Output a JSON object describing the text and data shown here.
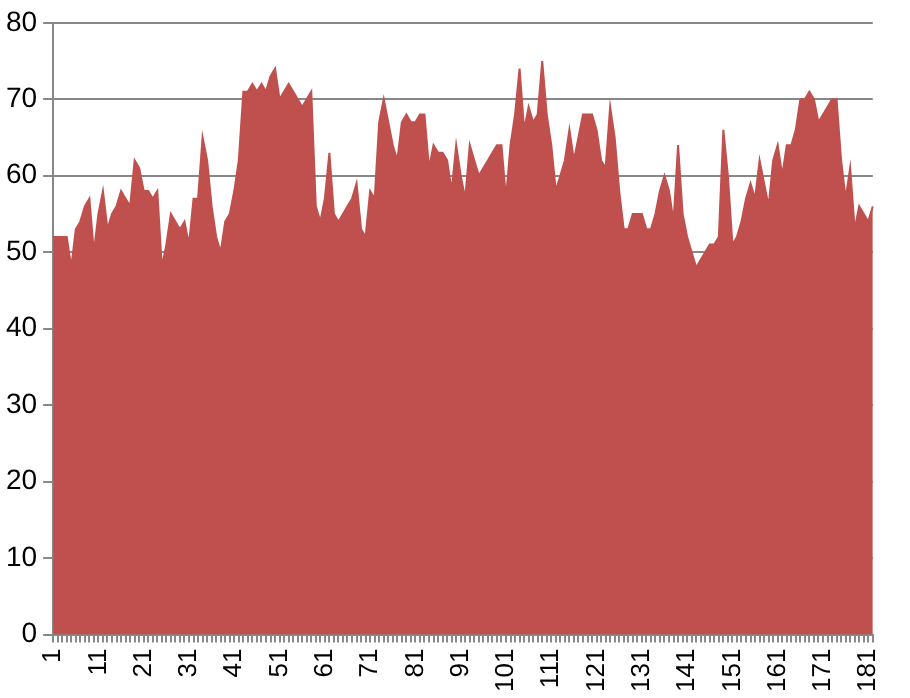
{
  "chart_data": {
    "type": "area",
    "categories": [
      "1",
      null,
      null,
      null,
      null,
      null,
      null,
      null,
      null,
      null,
      "11",
      null,
      null,
      null,
      null,
      null,
      null,
      null,
      null,
      null,
      "21",
      null,
      null,
      null,
      null,
      null,
      null,
      null,
      null,
      null,
      "31",
      null,
      null,
      null,
      null,
      null,
      null,
      null,
      null,
      null,
      "41",
      null,
      null,
      null,
      null,
      null,
      null,
      null,
      null,
      null,
      "51",
      null,
      null,
      null,
      null,
      null,
      null,
      null,
      null,
      null,
      "61",
      null,
      null,
      null,
      null,
      null,
      null,
      null,
      null,
      null,
      "71",
      null,
      null,
      null,
      null,
      null,
      null,
      null,
      null,
      null,
      "81",
      null,
      null,
      null,
      null,
      null,
      null,
      null,
      null,
      null,
      "91",
      null,
      null,
      null,
      null,
      null,
      null,
      null,
      null,
      null,
      "101",
      null,
      null,
      null,
      null,
      null,
      null,
      null,
      null,
      null,
      "111",
      null,
      null,
      null,
      null,
      null,
      null,
      null,
      null,
      null,
      "121",
      null,
      null,
      null,
      null,
      null,
      null,
      null,
      null,
      null,
      "131",
      null,
      null,
      null,
      null,
      null,
      null,
      null,
      null,
      null,
      "141",
      null,
      null,
      null,
      null,
      null,
      null,
      null,
      null,
      null,
      "151",
      null,
      null,
      null,
      null,
      null,
      null,
      null,
      null,
      null,
      "161",
      null,
      null,
      null,
      null,
      null,
      null,
      null,
      null,
      null,
      "171",
      null,
      null,
      null,
      null,
      null,
      null,
      null,
      null,
      null,
      "181",
      null
    ],
    "series": [
      {
        "color": "#c0504d",
        "values": [
          52,
          52,
          52,
          52,
          48,
          53,
          54,
          56,
          57,
          50,
          55,
          58,
          53,
          55,
          56,
          58,
          57,
          56,
          62,
          61,
          58,
          58,
          57,
          58,
          48,
          51,
          55,
          54,
          53,
          54,
          51,
          57,
          57,
          65,
          62,
          56,
          52,
          50,
          54,
          55,
          58,
          62,
          71,
          71,
          72,
          71,
          72,
          71,
          73,
          74,
          70,
          71,
          72,
          71,
          70,
          69,
          70,
          71,
          56,
          54,
          57,
          63,
          55,
          54,
          55,
          56,
          57,
          59,
          53,
          52,
          58,
          57,
          67,
          70,
          67,
          64,
          62,
          67,
          68,
          67,
          67,
          68,
          68,
          61,
          64,
          63,
          63,
          62,
          58,
          64,
          60,
          57,
          64,
          62,
          60,
          61,
          62,
          63,
          64,
          64,
          57,
          64,
          68,
          74,
          66,
          69,
          67,
          68,
          75,
          68,
          64,
          58,
          60,
          62,
          66,
          62,
          65,
          68,
          68,
          68,
          66,
          62,
          61,
          69,
          65,
          58,
          53,
          53,
          55,
          55,
          55,
          53,
          53,
          55,
          58,
          60,
          58,
          54,
          64,
          55,
          52,
          50,
          48,
          49,
          50,
          51,
          51,
          52,
          66,
          60,
          51,
          52,
          54,
          57,
          59,
          57,
          62,
          59,
          56,
          62,
          64,
          60,
          64,
          64,
          66,
          70,
          70,
          71,
          70,
          67,
          68,
          69,
          70,
          70,
          62,
          57,
          61,
          53,
          56,
          55,
          54,
          56
        ]
      }
    ],
    "ylim": [
      0,
      80
    ],
    "yticks": [
      0,
      10,
      20,
      30,
      40,
      50,
      60,
      70,
      80
    ],
    "grid": "y",
    "legend": false,
    "marker": "none"
  }
}
